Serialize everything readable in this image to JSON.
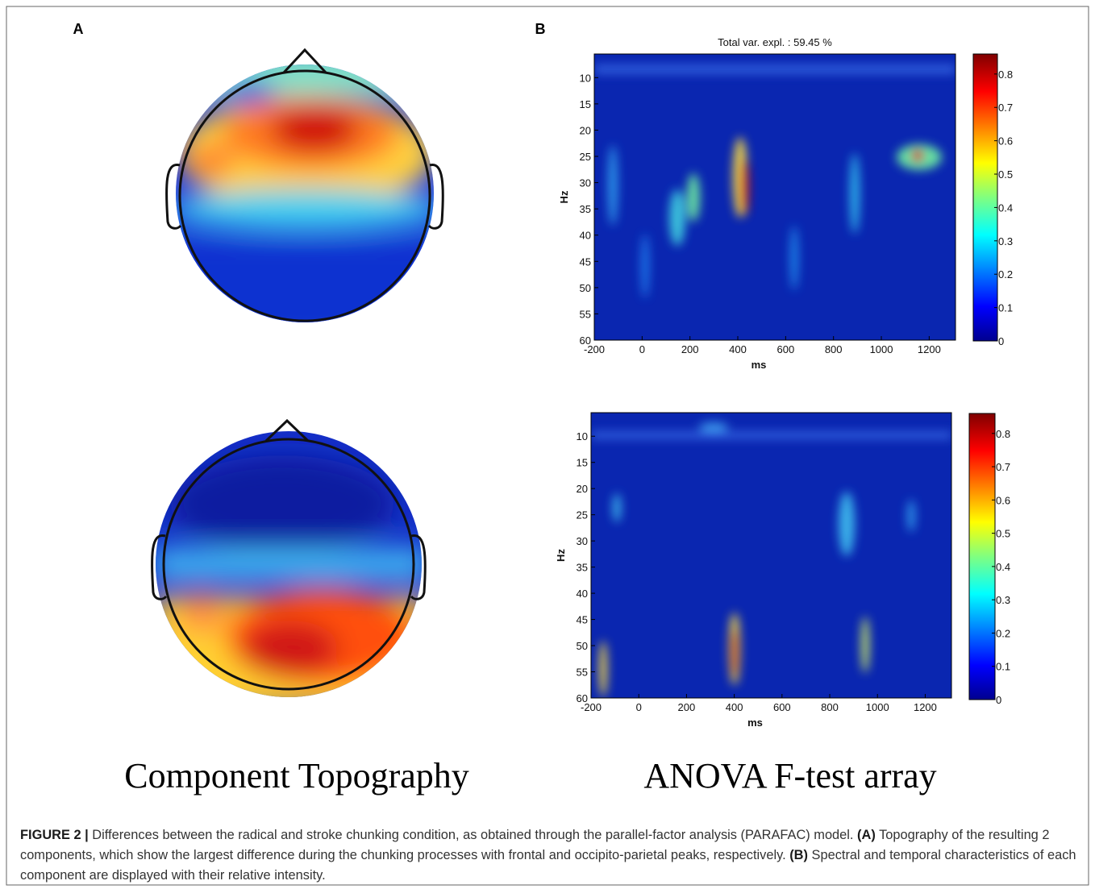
{
  "panels": [
    {
      "label": "A"
    },
    {
      "label": "B"
    }
  ],
  "heatmaps": [
    {
      "title": "Total var. expl. : 59.45 %",
      "xlabel": "ms",
      "ylabel": "Hz",
      "xlim": [
        -200,
        1310
      ],
      "ylim": [
        5.5,
        60
      ],
      "xticks": [
        -200,
        0,
        200,
        400,
        600,
        800,
        1000,
        1200
      ],
      "yticks": [
        10,
        15,
        20,
        25,
        30,
        35,
        40,
        45,
        50,
        55,
        60
      ],
      "colorbar": {
        "lim": [
          0,
          0.86
        ],
        "ticks": [
          0,
          0.1,
          0.2,
          0.3,
          0.4,
          0.5,
          0.6,
          0.7,
          0.8
        ]
      }
    },
    {
      "xlabel": "ms",
      "ylabel": "Hz",
      "xlim": [
        -200,
        1310
      ],
      "ylim": [
        5.5,
        60
      ],
      "xticks": [
        -200,
        0,
        200,
        400,
        600,
        800,
        1000,
        1200
      ],
      "yticks": [
        10,
        15,
        20,
        25,
        30,
        35,
        40,
        45,
        50,
        55,
        60
      ],
      "colorbar": {
        "lim": [
          0,
          0.86
        ],
        "ticks": [
          0,
          0.1,
          0.2,
          0.3,
          0.4,
          0.5,
          0.6,
          0.7,
          0.8
        ]
      }
    }
  ],
  "panel_titles": [
    "Component Topography",
    "ANOVA F-test array"
  ],
  "caption": [
    {
      "text": "FIGURE 2 |",
      "bold": true
    },
    {
      "text": " Differences between the radical and stroke chunking condition, as obtained through the parallel-factor analysis (PARAFAC) model. ",
      "bold": false
    },
    {
      "text": "(A)",
      "bold": true
    },
    {
      "text": " Topography of the resulting 2 components, which show the largest difference during the chunking processes with frontal and occipito-parietal peaks, respectively. ",
      "bold": false
    },
    {
      "text": "(B)",
      "bold": true
    },
    {
      "text": " Spectral and temporal characteristics of each component are displayed with their relative intensity.",
      "bold": false
    }
  ]
}
